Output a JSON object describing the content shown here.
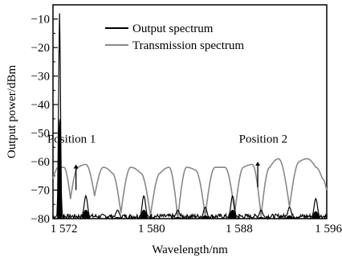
{
  "chart_data": {
    "type": "line",
    "xlabel": "Wavelength/nm",
    "ylabel": "Output power/dBm",
    "xlim": [
      1571.0,
      1596.0
    ],
    "ylim": [
      -80,
      -5
    ],
    "x_ticks": [
      1572,
      1580,
      1588,
      1596
    ],
    "x_tick_labels": [
      "1 572",
      "1 580",
      "1 588",
      "1 596"
    ],
    "y_ticks": [
      -10,
      -20,
      -30,
      -40,
      -50,
      -60,
      -70,
      -80
    ],
    "y_tick_labels": [
      "−10",
      "−20",
      "−30",
      "−40",
      "−50",
      "−60",
      "−70",
      "−80"
    ],
    "grid": false,
    "legend_position": "top-center",
    "series": [
      {
        "name": "Output spectrum",
        "color": "#000000",
        "peaks": [
          {
            "x": 1571.6,
            "y": -8
          },
          {
            "x": 1574.0,
            "y": -72
          },
          {
            "x": 1576.9,
            "y": -77
          },
          {
            "x": 1579.3,
            "y": -72
          },
          {
            "x": 1582.4,
            "y": -77
          },
          {
            "x": 1584.9,
            "y": -76
          },
          {
            "x": 1587.4,
            "y": -72
          },
          {
            "x": 1590.0,
            "y": -77
          },
          {
            "x": 1592.6,
            "y": -76
          },
          {
            "x": 1595.0,
            "y": -73
          }
        ]
      },
      {
        "name": "Transmission spectrum",
        "color": "#888888",
        "x": [
          1571.0,
          1571.5,
          1572.0,
          1572.6,
          1573.3,
          1574.0,
          1574.8,
          1575.6,
          1576.4,
          1577.2,
          1578.1,
          1579.0,
          1579.9,
          1580.8,
          1581.6,
          1582.4,
          1583.2,
          1584.0,
          1584.9,
          1585.8,
          1586.7,
          1587.6,
          1588.4,
          1589.2,
          1590.0,
          1590.8,
          1591.6,
          1592.6,
          1593.5,
          1594.2,
          1595.0,
          1595.6,
          1596.0
        ],
        "y": [
          -66,
          -62,
          -62,
          -73,
          -62,
          -61,
          -72,
          -62,
          -64,
          -78,
          -62,
          -64,
          -79,
          -64,
          -62,
          -80,
          -62,
          -63,
          -79,
          -62,
          -62,
          -78,
          -62,
          -61,
          -79,
          -62,
          -59,
          -76,
          -60,
          -59,
          -62,
          -66,
          -70
        ]
      }
    ],
    "annotations": [
      {
        "text": "Position 1",
        "x": 1572.7,
        "y": -52,
        "arrow_y": [
          -70,
          -61
        ]
      },
      {
        "text": "Position 2",
        "x": 1590.2,
        "y": -52,
        "arrow_y": [
          -69,
          -60
        ]
      }
    ]
  }
}
